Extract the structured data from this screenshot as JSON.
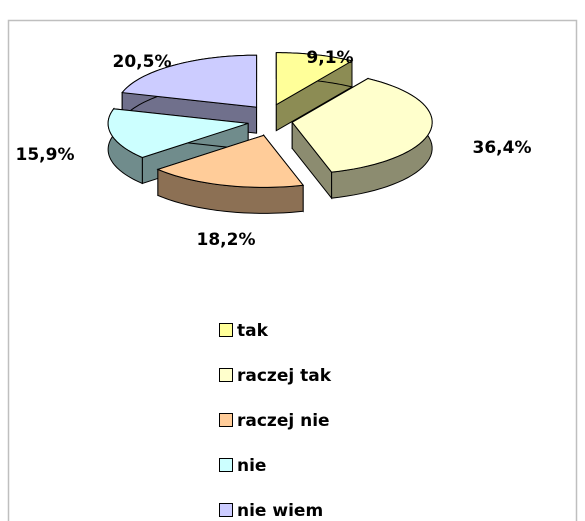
{
  "chart_data": {
    "type": "pie",
    "categories": [
      "tak",
      "raczej tak",
      "raczej nie",
      "nie",
      "nie wiem"
    ],
    "values": [
      9.1,
      36.4,
      18.2,
      15.9,
      20.5
    ],
    "value_labels": [
      "9,1%",
      "36,4%",
      "18,2%",
      "15,9%",
      "20,5%"
    ],
    "colors": [
      "#ffff99",
      "#ffffcc",
      "#ffcc99",
      "#ccffff",
      "#ccccff"
    ]
  }
}
